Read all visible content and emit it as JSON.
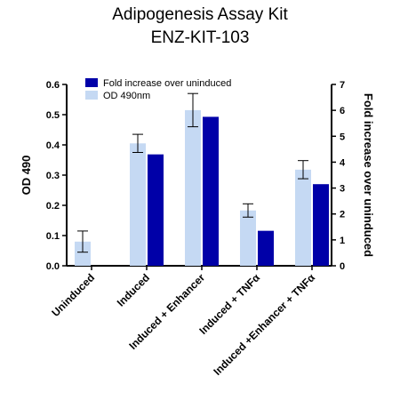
{
  "chart_data": {
    "type": "bar",
    "title": "Adipogenesis Assay Kit",
    "subtitle": "ENZ-KIT-103",
    "categories": [
      "Uninduced",
      "Induced",
      "Induced + Enhancer",
      "Induced + TNFα",
      "Induced +Enhancer + TNFα"
    ],
    "series": [
      {
        "name": "OD 490nm",
        "axis": "left",
        "color": "#c5d9f3",
        "values": [
          0.08,
          0.405,
          0.515,
          0.183,
          0.318
        ],
        "error": [
          0.035,
          0.03,
          0.055,
          0.022,
          0.03
        ]
      },
      {
        "name": "Fold increase over uninduced",
        "axis": "right",
        "color": "#0000a8",
        "values": [
          null,
          4.3,
          5.75,
          1.35,
          3.15
        ]
      }
    ],
    "ylabel": "OD 490",
    "y2label": "Fold increase over uninduced",
    "ylim": [
      0,
      0.6
    ],
    "yticks": [
      "0.0",
      "0.1",
      "0.2",
      "0.3",
      "0.4",
      "0.5",
      "0.6"
    ],
    "y2lim": [
      0,
      7
    ],
    "y2ticks": [
      "0",
      "1",
      "2",
      "3",
      "4",
      "5",
      "6",
      "7"
    ],
    "legend_position": "top-left",
    "grid": false
  }
}
